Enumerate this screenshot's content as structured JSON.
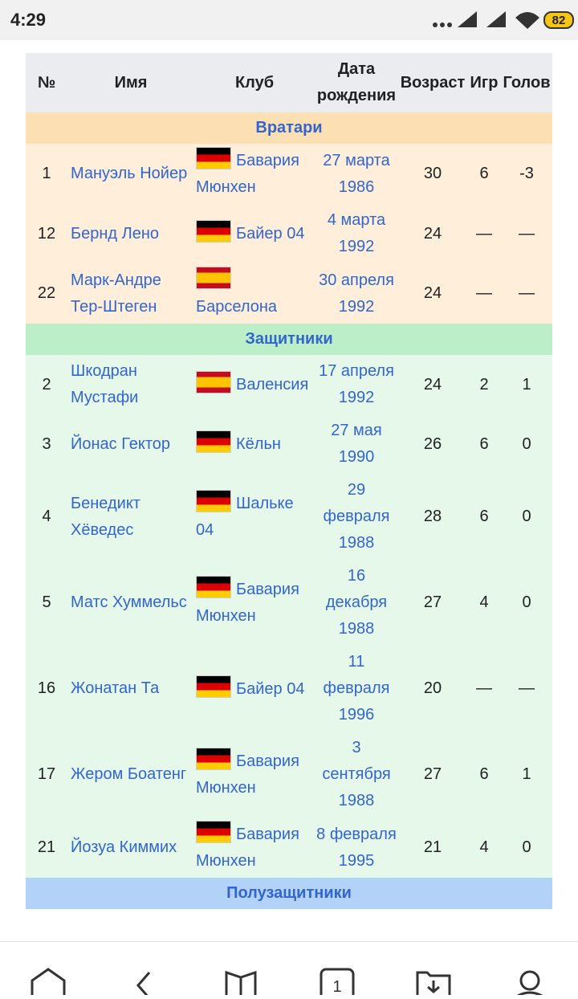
{
  "status_bar": {
    "time": "4:29",
    "battery": "82"
  },
  "table": {
    "headers": [
      "№",
      "Имя",
      "Клуб",
      "Дата рождения",
      "Возраст",
      "Игр",
      "Голов"
    ],
    "groups": [
      {
        "title": "Вратари",
        "header_color": "#fddfb4",
        "row_color": "#feeeda",
        "rows": [
          {
            "cells": [
              "1",
              "Мануэль Нойер",
              "Бавария Мюнхен",
              "27 марта 1986",
              "30",
              "6",
              "-3"
            ],
            "flag_colors": [
              "#000000",
              "#dd0000",
              "#ffcc00"
            ]
          },
          {
            "cells": [
              "12",
              "Бернд Лено",
              "Байер 04",
              "4 марта 1992",
              "24",
              "—",
              "—"
            ],
            "flag_colors": [
              "#000000",
              "#dd0000",
              "#ffcc00"
            ]
          },
          {
            "cells": [
              "22",
              "Марк-Андре Тер-Штеген",
              "Барселона",
              "30 апреля 1992",
              "24",
              "—",
              "—"
            ],
            "flag_colors": [
              "#c60b1e",
              "#ffc400",
              "#c60b1e"
            ]
          }
        ]
      },
      {
        "title": "Защитники",
        "header_color": "#bcefc8",
        "row_color": "#e6f8ea",
        "rows": [
          {
            "cells": [
              "2",
              "Шкодран Мустафи",
              "Валенсия",
              "17 апреля 1992",
              "24",
              "2",
              "1"
            ],
            "flag_colors": [
              "#c60b1e",
              "#ffc400",
              "#c60b1e"
            ]
          },
          {
            "cells": [
              "3",
              "Йонас Гектор",
              "Кёльн",
              "27 мая 1990",
              "26",
              "6",
              "0"
            ],
            "flag_colors": [
              "#000000",
              "#dd0000",
              "#ffcc00"
            ]
          },
          {
            "cells": [
              "4",
              "Бенедикт Хёведес",
              "Шальке 04",
              "29 февраля 1988",
              "28",
              "6",
              "0"
            ],
            "flag_colors": [
              "#000000",
              "#dd0000",
              "#ffcc00"
            ]
          },
          {
            "cells": [
              "5",
              "Матс Хуммельс",
              "Бавария Мюнхен",
              "16 декабря 1988",
              "27",
              "4",
              "0"
            ],
            "flag_colors": [
              "#000000",
              "#dd0000",
              "#ffcc00"
            ]
          },
          {
            "cells": [
              "16",
              "Жонатан Та",
              "Байер 04",
              "11 февраля 1996",
              "20",
              "—",
              "—"
            ],
            "flag_colors": [
              "#000000",
              "#dd0000",
              "#ffcc00"
            ]
          },
          {
            "cells": [
              "17",
              "Жером Боатенг",
              "Бавария Мюнхен",
              "3 сентября 1988",
              "27",
              "6",
              "1"
            ],
            "flag_colors": [
              "#000000",
              "#dd0000",
              "#ffcc00"
            ]
          },
          {
            "cells": [
              "21",
              "Йозуа Киммих",
              "Бавария Мюнхен",
              "8 февраля 1995",
              "21",
              "4",
              "0"
            ],
            "flag_colors": [
              "#000000",
              "#dd0000",
              "#ffcc00"
            ]
          }
        ]
      },
      {
        "title": "Полузащитники",
        "header_color": "#b2d2f8",
        "row_color": "#e4effc",
        "rows": []
      }
    ]
  },
  "nav": {
    "tabs": "1"
  }
}
